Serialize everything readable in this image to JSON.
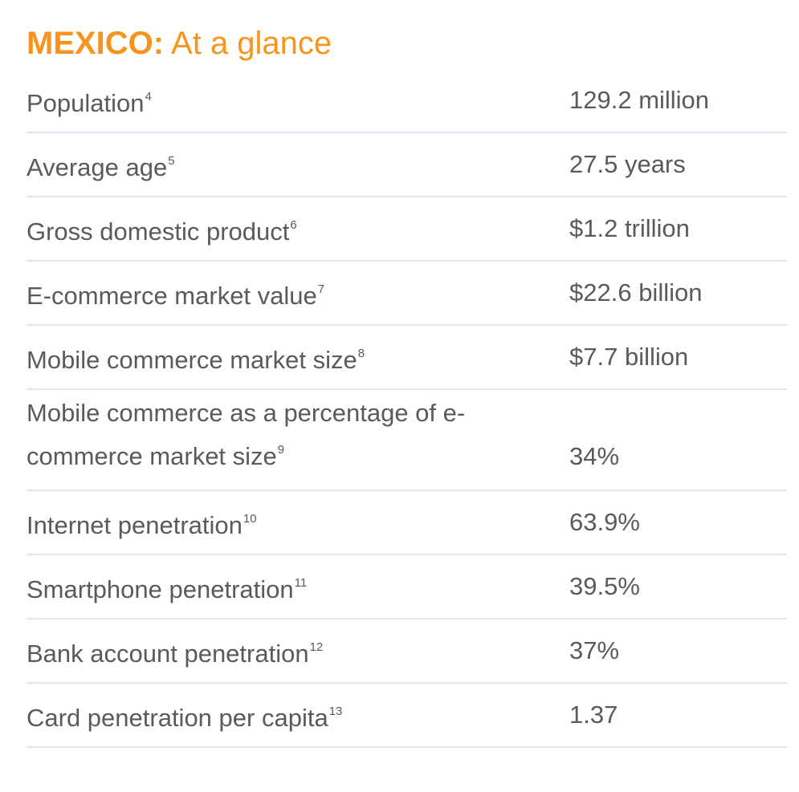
{
  "title": {
    "country": "MEXICO:",
    "subtitle": " At a glance"
  },
  "rows": [
    {
      "label": "Population",
      "note": "4",
      "value": "129.2 million"
    },
    {
      "label": "Average age",
      "note": "5",
      "value": "27.5 years"
    },
    {
      "label": "Gross domestic product",
      "note": "6",
      "value": "$1.2 trillion"
    },
    {
      "label": "E-commerce market value",
      "note": "7",
      "value": "$22.6 billion"
    },
    {
      "label": "Mobile commerce market size",
      "note": "8",
      "value": "$7.7 billion"
    },
    {
      "label": "Mobile commerce as a percentage of e-commerce market size",
      "note": "9",
      "value": "34%"
    },
    {
      "label": "Internet penetration",
      "note": "10",
      "value": "63.9%"
    },
    {
      "label": "Smartphone penetration",
      "note": "11",
      "value": "39.5%"
    },
    {
      "label": "Bank account penetration",
      "note": "12",
      "value": "37%"
    },
    {
      "label": "Card penetration per capita",
      "note": "13",
      "value": "1.37"
    }
  ],
  "colors": {
    "title": "#f7941d",
    "text": "#5a5a5a",
    "divider": "#dbe6f2"
  }
}
